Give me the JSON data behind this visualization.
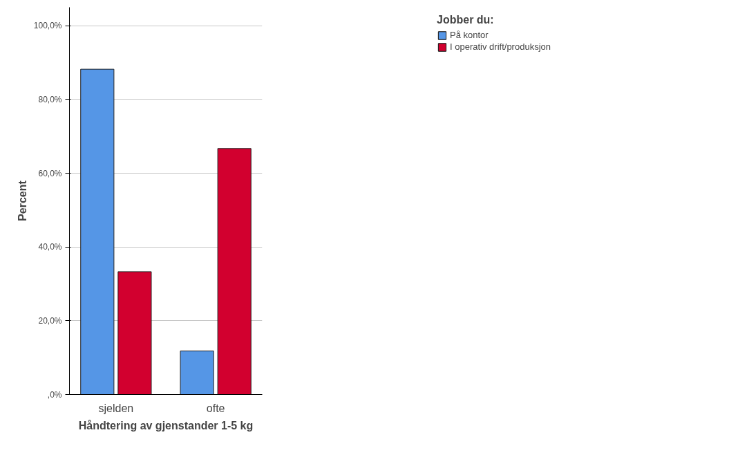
{
  "chart_data": {
    "type": "bar",
    "xlabel": "Håndtering av gjenstander 1-5 kg",
    "ylabel": "Percent",
    "legend_title": "Jobber du:",
    "categories": [
      "sjelden",
      "ofte"
    ],
    "series": [
      {
        "name": "På kontor",
        "color": "#5596e6",
        "values": [
          88.2,
          11.8
        ]
      },
      {
        "name": "I operativ drift/produksjon",
        "color": "#d2002f",
        "values": [
          33.3,
          66.7
        ]
      }
    ],
    "ylim": [
      0,
      105
    ],
    "yticks": [
      {
        "value": 0,
        "label": ",0%"
      },
      {
        "value": 20,
        "label": "20,0%"
      },
      {
        "value": 40,
        "label": "40,0%"
      },
      {
        "value": 60,
        "label": "60,0%"
      },
      {
        "value": 80,
        "label": "80,0%"
      },
      {
        "value": 100,
        "label": "100,0%"
      }
    ],
    "grid": "y",
    "legend": "top right"
  }
}
